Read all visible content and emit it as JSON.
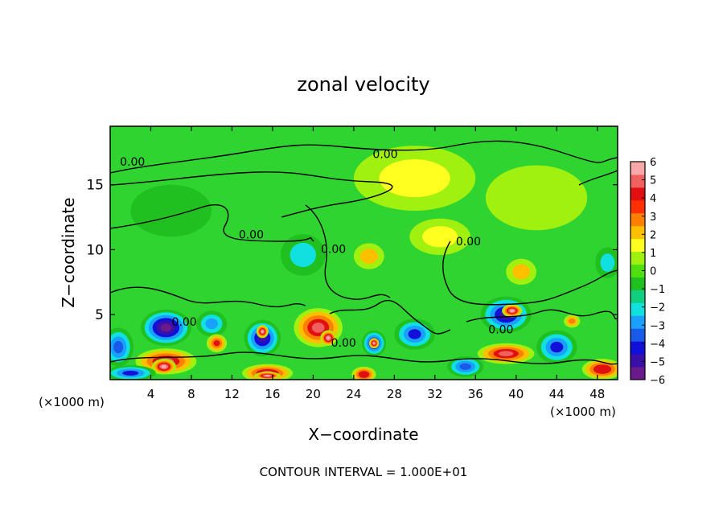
{
  "chart_data": {
    "type": "heatmap",
    "title": "zonal velocity",
    "xlabel": "X−coordinate",
    "ylabel": "Z−coordinate",
    "x_unit_label": "(×1000 m)",
    "z_unit_label": "(×1000 m)",
    "xlim": [
      0,
      50
    ],
    "ylim": [
      0,
      19.5
    ],
    "x_ticks": [
      4,
      8,
      12,
      16,
      20,
      24,
      28,
      32,
      36,
      40,
      44,
      48
    ],
    "y_ticks": [
      5,
      10,
      15
    ],
    "footer": "CONTOUR INTERVAL = 1.000E+01",
    "colorbar": {
      "min": -6,
      "max": 6,
      "ticks": [
        6,
        5,
        4,
        3,
        2,
        1,
        0,
        -1,
        -2,
        -3,
        -4,
        -5,
        -6
      ],
      "tick_labels": [
        "6",
        "5",
        "4",
        "3",
        "2",
        "1",
        "0",
        "−1",
        "−2",
        "−3",
        "−4",
        "−5",
        "−6"
      ],
      "colors": [
        "#6a1a8a",
        "#3a10a8",
        "#1010d8",
        "#1a5ae8",
        "#1aa0ff",
        "#10e0e0",
        "#10d080",
        "#20c020",
        "#50e010",
        "#a0f010",
        "#ffff20",
        "#ffc000",
        "#ff8000",
        "#ff3000",
        "#e01010",
        "#f06060",
        "#f8a8a8"
      ]
    },
    "contour_labels": [
      {
        "text": "0.00",
        "x": 2.2,
        "z": 16.7
      },
      {
        "text": "0.00",
        "x": 27.1,
        "z": 17.3
      },
      {
        "text": "0.00",
        "x": 13.9,
        "z": 11.1
      },
      {
        "text": "0.00",
        "x": 22.0,
        "z": 10.0
      },
      {
        "text": "0.00",
        "x": 35.3,
        "z": 10.6
      },
      {
        "text": "0.00",
        "x": 7.3,
        "z": 4.4
      },
      {
        "text": "0.00",
        "x": 23.0,
        "z": 2.8
      },
      {
        "text": "0.00",
        "x": 38.5,
        "z": 3.8
      }
    ],
    "features": [
      {
        "u": -5.5,
        "x": 5.5,
        "z": 4.0,
        "rx": 2.5,
        "rz": 1.4
      },
      {
        "u": -3.5,
        "x": 0.8,
        "z": 2.5,
        "rx": 1.5,
        "rz": 1.5
      },
      {
        "u": 5.0,
        "x": 5.5,
        "z": 1.4,
        "rx": 3.0,
        "rz": 1.0
      },
      {
        "u": 6.0,
        "x": 5.3,
        "z": 1.0,
        "rx": 1.2,
        "rz": 0.6
      },
      {
        "u": -5.0,
        "x": 15.0,
        "z": 3.2,
        "rx": 1.8,
        "rz": 1.4
      },
      {
        "u": 6.0,
        "x": 15.0,
        "z": 3.7,
        "rx": 0.6,
        "rz": 0.5
      },
      {
        "u": 5.0,
        "x": 20.5,
        "z": 4.0,
        "rx": 2.4,
        "rz": 1.5
      },
      {
        "u": 6.0,
        "x": 21.5,
        "z": 3.2,
        "rx": 0.8,
        "rz": 0.6
      },
      {
        "u": 5.0,
        "x": 15.5,
        "z": 0.5,
        "rx": 2.5,
        "rz": 0.7
      },
      {
        "u": 6.0,
        "x": 15.5,
        "z": 0.3,
        "rx": 1.3,
        "rz": 0.3
      },
      {
        "u": -5.0,
        "x": 26.0,
        "z": 2.8,
        "rx": 1.2,
        "rz": 1.0
      },
      {
        "u": 6.0,
        "x": 26.0,
        "z": 2.8,
        "rx": 0.5,
        "rz": 0.4
      },
      {
        "u": -4.0,
        "x": 30.0,
        "z": 3.5,
        "rx": 2.0,
        "rz": 1.2
      },
      {
        "u": 4.5,
        "x": 25.0,
        "z": 0.4,
        "rx": 1.2,
        "rz": 0.6
      },
      {
        "u": -5.0,
        "x": 39.0,
        "z": 5.0,
        "rx": 2.5,
        "rz": 1.4
      },
      {
        "u": 6.0,
        "x": 39.6,
        "z": 5.3,
        "rx": 1.0,
        "rz": 0.5
      },
      {
        "u": 5.0,
        "x": 39.0,
        "z": 2.0,
        "rx": 2.8,
        "rz": 0.8
      },
      {
        "u": -4.0,
        "x": 44.0,
        "z": 2.5,
        "rx": 2.0,
        "rz": 1.3
      },
      {
        "u": 4.5,
        "x": 48.5,
        "z": 0.8,
        "rx": 2.0,
        "rz": 0.8
      },
      {
        "u": 3.0,
        "x": 45.5,
        "z": 4.5,
        "rx": 0.8,
        "rz": 0.5
      },
      {
        "u": -3.0,
        "x": 10.0,
        "z": 4.3,
        "rx": 1.5,
        "rz": 1.0
      },
      {
        "u": 4.0,
        "x": 10.5,
        "z": 2.8,
        "rx": 1.0,
        "rz": 0.7
      },
      {
        "u": -2.0,
        "x": 19.0,
        "z": 9.6,
        "rx": 2.2,
        "rz": 1.6
      },
      {
        "u": 2.0,
        "x": 25.5,
        "z": 9.5,
        "rx": 1.5,
        "rz": 1.0
      },
      {
        "u": 1.6,
        "x": 32.5,
        "z": 11.0,
        "rx": 3.0,
        "rz": 1.4
      },
      {
        "u": 1.8,
        "x": 40.5,
        "z": 8.3,
        "rx": 1.5,
        "rz": 1.0
      },
      {
        "u": -2.0,
        "x": 49.0,
        "z": 9.0,
        "rx": 1.2,
        "rz": 1.2
      },
      {
        "u": 1.2,
        "x": 30.0,
        "z": 15.5,
        "rx": 6.0,
        "rz": 2.5
      },
      {
        "u": -1.0,
        "x": 6.0,
        "z": 13.0,
        "rx": 4.0,
        "rz": 2.0
      },
      {
        "u": 1.0,
        "x": 42.0,
        "z": 14.0,
        "rx": 5.0,
        "rz": 2.5
      },
      {
        "u": -4.0,
        "x": 2.0,
        "z": 0.5,
        "rx": 2.5,
        "rz": 0.6
      },
      {
        "u": -3.5,
        "x": 35.0,
        "z": 1.0,
        "rx": 1.8,
        "rz": 0.8
      }
    ]
  }
}
